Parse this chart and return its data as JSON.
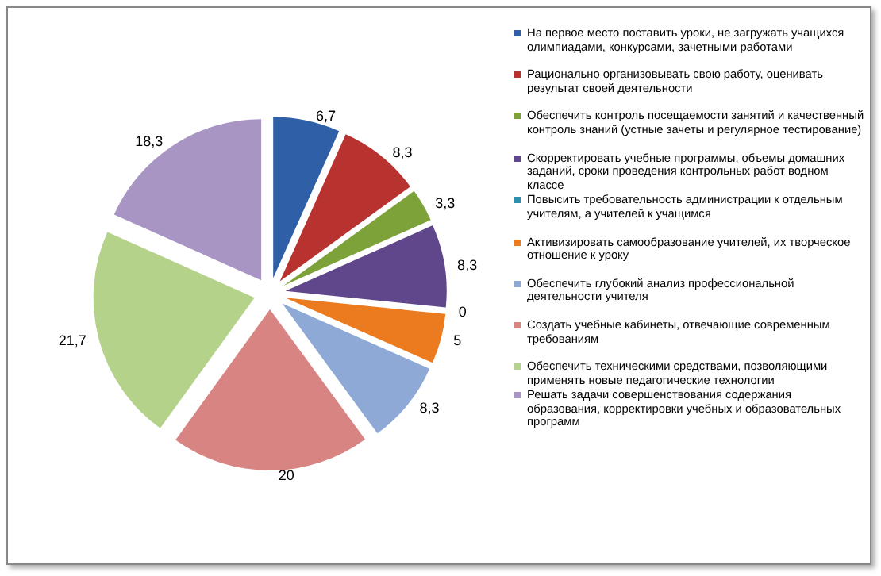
{
  "chart_data": {
    "type": "pie",
    "categories": [
      "На первое место поставить уроки, не загружать учащихся олимпиадами,  конкурсами,  зачетными работами",
      "Рационально организовывать свою работу, оценивать результат своей деятельности",
      "Обеспечить контроль посещаемости занятий и качественный контроль знаний (устные зачеты и регулярное тестирование)",
      "Скорректировать учебные программы, объемы домашних заданий, сроки проведения контрольных работ водном классе",
      "Повысить требовательность администрации к отдельным учителям, а учителей к учащимся",
      " Активизировать самообразование учителей, их творческое отношение к уроку",
      "Обеспечить глубокий анализ профессиональной деятельности учителя",
      "Создать учебные кабинеты, отвечающие современным требованиям",
      "Обеспечить техническими средствами, позволяющими применять новые педагогические технологии",
      "Решать задачи совершенствования содержания образования, корректировки учебных и образовательных программ"
    ],
    "values": [
      6.7,
      8.3,
      3.3,
      8.3,
      0,
      5,
      8.3,
      20,
      21.7,
      18.3
    ],
    "value_labels": [
      "6,7",
      "8,3",
      "3,3",
      "8,3",
      "0",
      "5",
      "8,3",
      "20",
      "21,7",
      "18,3"
    ],
    "colors": [
      "#2f5fa6",
      "#b8322f",
      "#7ea23a",
      "#60468a",
      "#2f8fae",
      "#ec7a1e",
      "#8fa9d6",
      "#d88483",
      "#b4d28a",
      "#a895c4"
    ],
    "legend": "right"
  }
}
